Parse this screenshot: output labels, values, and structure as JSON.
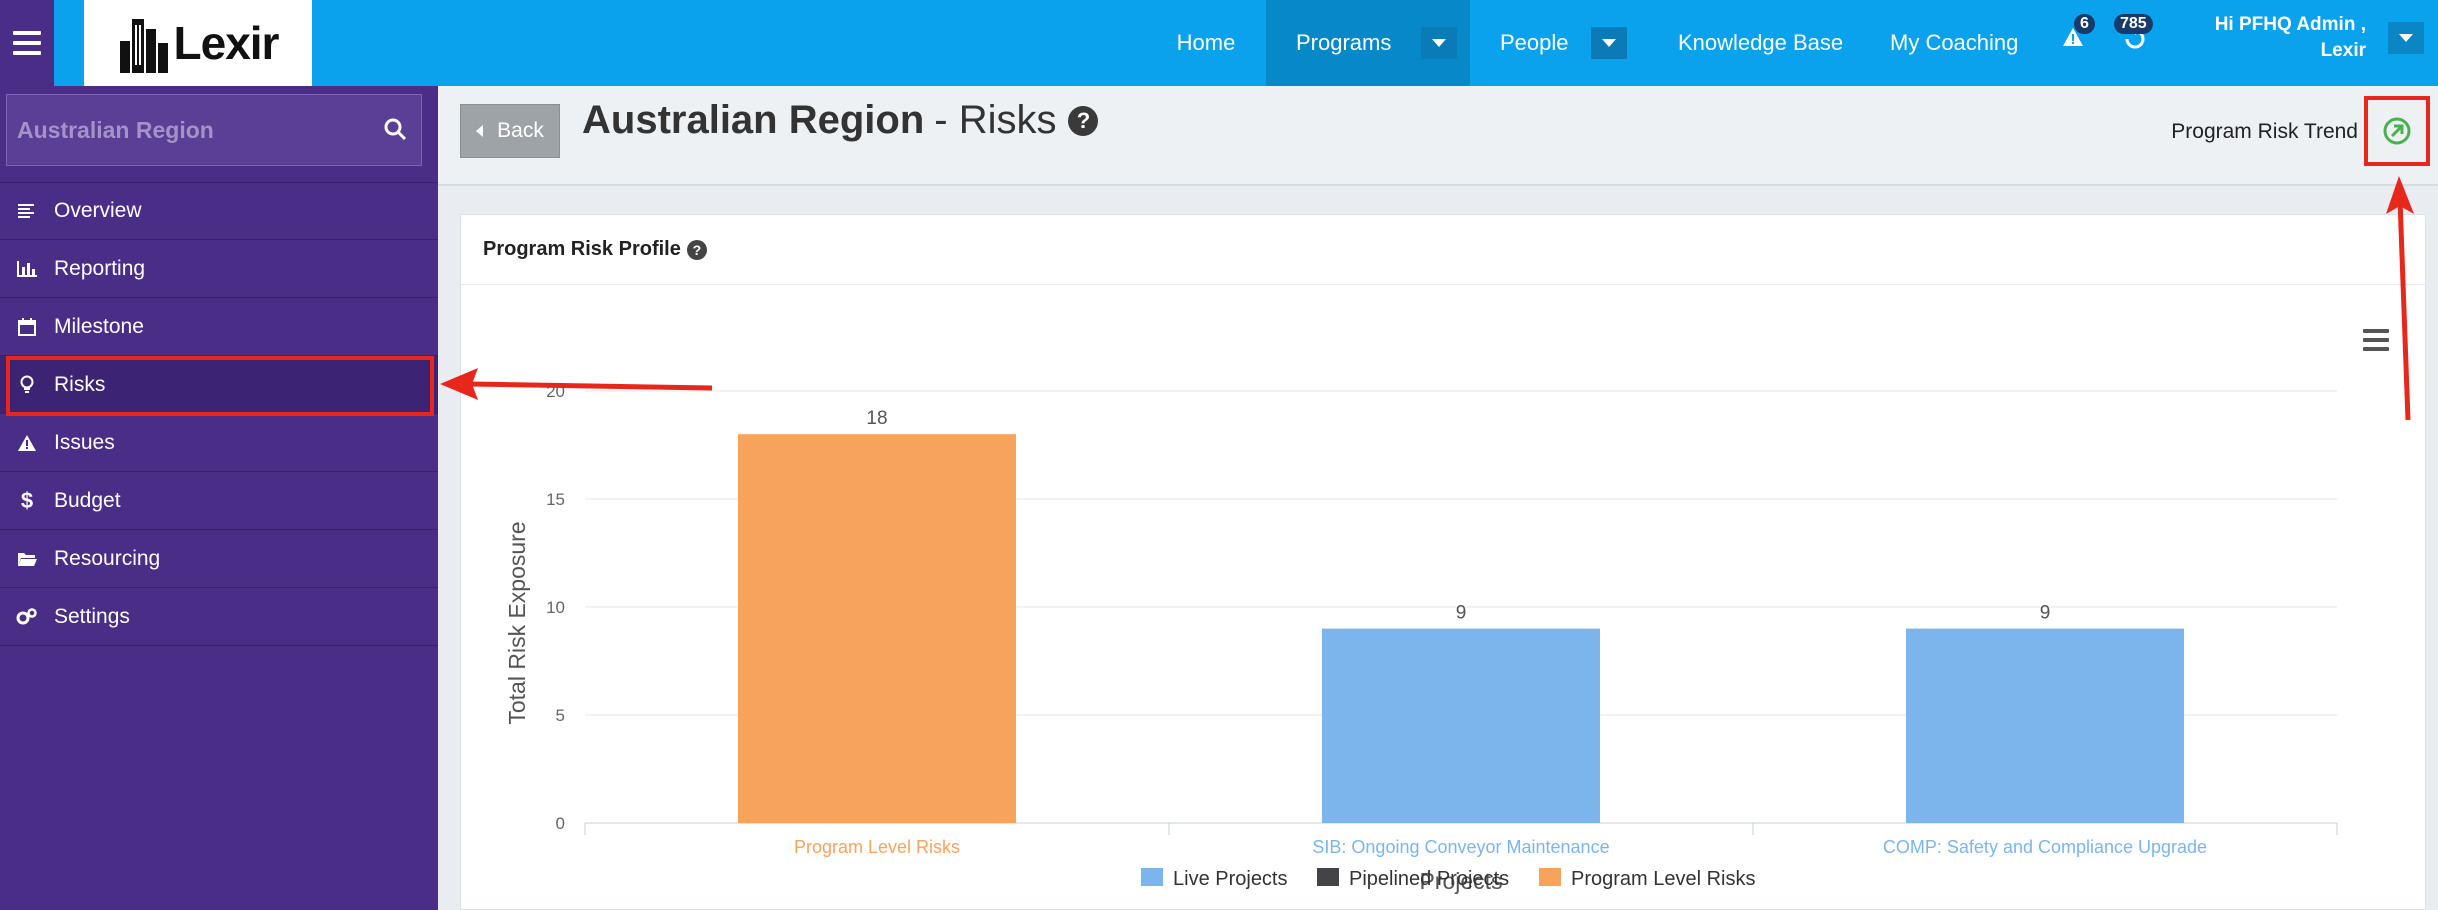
{
  "topbar": {
    "brand": "Lexir",
    "nav": [
      {
        "label": "Home"
      },
      {
        "label": "Programs",
        "active": true
      },
      {
        "label": "People"
      },
      {
        "label": "Knowledge Base"
      },
      {
        "label": "My Coaching"
      }
    ],
    "alerts_count": "6",
    "notifications_count": "785",
    "user_line1": "Hi PFHQ Admin ,",
    "user_line2": "Lexir"
  },
  "sidebar": {
    "search_placeholder": "Australian Region",
    "items": [
      {
        "label": "Overview",
        "icon": "list-icon"
      },
      {
        "label": "Reporting",
        "icon": "bar-chart-icon"
      },
      {
        "label": "Milestone",
        "icon": "calendar-icon"
      },
      {
        "label": "Risks",
        "icon": "lightbulb-icon",
        "active": true
      },
      {
        "label": "Issues",
        "icon": "warning-icon"
      },
      {
        "label": "Budget",
        "icon": "dollar-icon"
      },
      {
        "label": "Resourcing",
        "icon": "folder-icon"
      },
      {
        "label": "Settings",
        "icon": "gears-icon"
      }
    ]
  },
  "header": {
    "back_label": "Back",
    "title_bold": "Australian Region",
    "title_rest": "- Risks",
    "trend_label": "Program Risk Trend"
  },
  "card": {
    "title": "Program Risk Profile"
  },
  "colors": {
    "live": "#7cb5ec",
    "pipelined": "#434348",
    "program": "#f7a35c",
    "accent": "#0aa2ec",
    "sidebar": "#4a2d86",
    "annotation": "#e8271c"
  },
  "chart_data": {
    "type": "bar",
    "categories": [
      "Program Level Risks",
      "SIB: Ongoing Conveyor Maintenance",
      "COMP: Safety and Compliance Upgrade"
    ],
    "values": [
      18,
      9,
      9
    ],
    "category_series": [
      "Program Level Risks",
      "Live Projects",
      "Live Projects"
    ],
    "series_legend": [
      {
        "name": "Live Projects",
        "color": "#7cb5ec"
      },
      {
        "name": "Pipelined Projects",
        "color": "#434348"
      },
      {
        "name": "Program Level Risks",
        "color": "#f7a35c"
      }
    ],
    "xlabel": "Projects",
    "ylabel": "Total Risk Exposure",
    "ylim": [
      0,
      20
    ],
    "yticks": [
      0,
      5,
      10,
      15,
      20
    ],
    "grid": true,
    "legend_position": "bottom"
  }
}
